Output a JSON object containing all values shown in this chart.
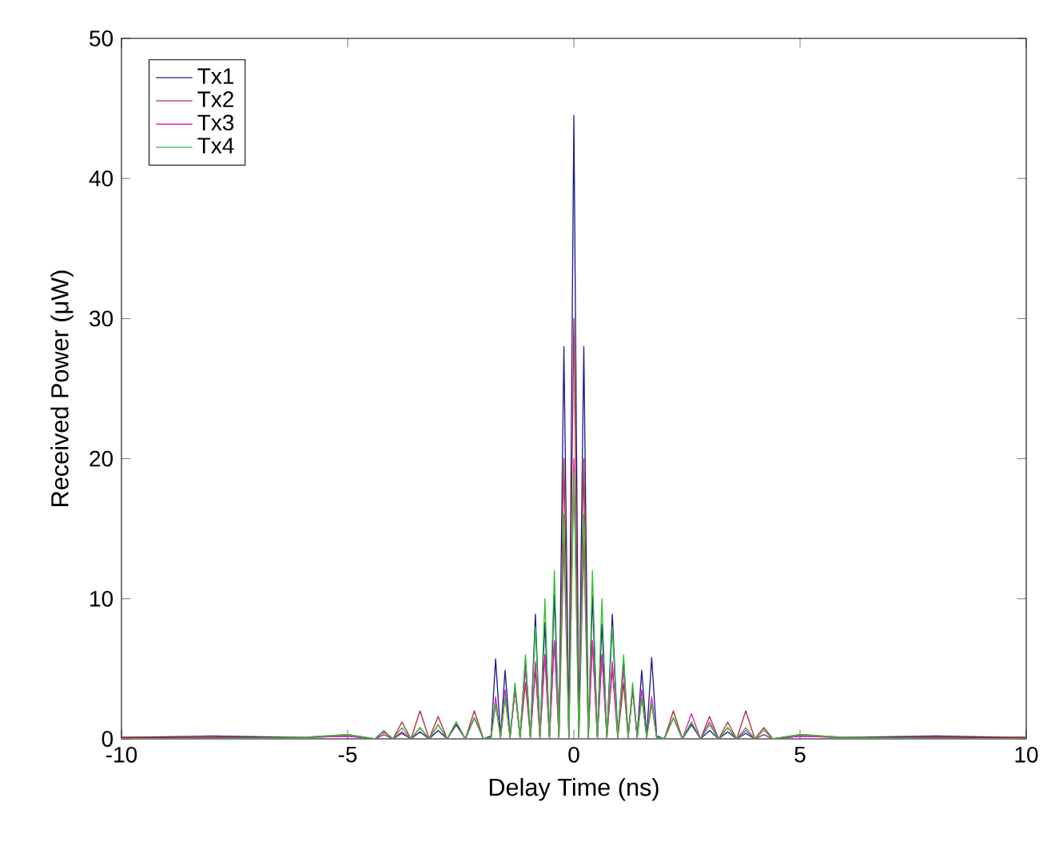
{
  "chart_data": {
    "type": "line",
    "xlabel": "Delay Time (ns)",
    "ylabel": "Received Power (μW)",
    "xlim": [
      -10,
      10
    ],
    "ylim": [
      0,
      50
    ],
    "xticks": [
      -10,
      -5,
      0,
      5,
      10
    ],
    "yticks": [
      0,
      10,
      20,
      30,
      40,
      50
    ],
    "grid": false,
    "legend": "top left",
    "marker": "none",
    "line_style": "solid",
    "x": [
      -10,
      -8,
      -6,
      -5,
      -4.4,
      -4.2,
      -4.0,
      -3.8,
      -3.6,
      -3.4,
      -3.2,
      -3.0,
      -2.8,
      -2.6,
      -2.4,
      -2.2,
      -2.0,
      -1.83,
      -1.73,
      -1.62,
      -1.52,
      -1.41,
      -1.3,
      -1.19,
      -1.07,
      -0.96,
      -0.85,
      -0.75,
      -0.64,
      -0.54,
      -0.43,
      -0.33,
      -0.22,
      -0.11,
      0,
      0.11,
      0.22,
      0.32,
      0.41,
      0.52,
      0.62,
      0.73,
      0.85,
      0.97,
      1.1,
      1.2,
      1.3,
      1.4,
      1.5,
      1.61,
      1.72,
      1.83,
      2.0,
      2.2,
      2.4,
      2.6,
      2.8,
      3.0,
      3.2,
      3.4,
      3.6,
      3.8,
      4.0,
      4.2,
      4.4,
      5,
      6,
      8,
      10
    ],
    "series": [
      {
        "name": "Tx1",
        "color": "#1c1c8c",
        "values": [
          0.1,
          0.2,
          0.1,
          0.2,
          0,
          0.3,
          0,
          0.4,
          0,
          0.5,
          0,
          0.6,
          0,
          1.0,
          0,
          1.5,
          0,
          0.2,
          5.7,
          0.2,
          4.9,
          0.2,
          3.5,
          0.2,
          5.6,
          0.2,
          8.9,
          0.2,
          8.3,
          0.2,
          10.3,
          0.2,
          28,
          0.2,
          44.5,
          0.2,
          28,
          0.2,
          10.2,
          0.2,
          8.2,
          0.2,
          8.9,
          0.2,
          5.6,
          0.2,
          3.5,
          0.2,
          4.9,
          0.2,
          5.8,
          0.2,
          0,
          1.5,
          0,
          1.0,
          0,
          0.6,
          0,
          0.5,
          0,
          0.4,
          0,
          0.3,
          0,
          0.2,
          0.1,
          0.2,
          0.1
        ]
      },
      {
        "name": "Tx2",
        "color": "#b02c3c",
        "values": [
          0.1,
          0.1,
          0.1,
          0.3,
          0,
          0.5,
          0,
          1.2,
          0,
          2.0,
          0,
          1.6,
          0,
          1.2,
          0,
          2.0,
          0,
          0.1,
          2.5,
          0.1,
          3.0,
          0.1,
          3.5,
          0.1,
          4.0,
          0.1,
          5.0,
          0.1,
          6.0,
          0.1,
          7.0,
          0.1,
          20,
          0.1,
          30,
          0.1,
          20,
          0.1,
          7.0,
          0.1,
          6.0,
          0.1,
          5.0,
          0.1,
          4.0,
          0.1,
          3.5,
          0.1,
          3.0,
          0.1,
          2.5,
          0.1,
          0,
          2.0,
          0,
          1.2,
          0,
          1.6,
          0,
          1.2,
          0,
          2.0,
          0,
          0.8,
          0,
          0.3,
          0.1,
          0.1,
          0.1
        ]
      },
      {
        "name": "Tx3",
        "color": "#e020c0",
        "values": [
          0,
          0,
          0.1,
          0.2,
          0,
          0.3,
          0,
          0.5,
          0,
          0.8,
          0,
          1.0,
          0,
          1.2,
          0,
          1.5,
          0,
          0.1,
          3.0,
          0.1,
          3.5,
          0.1,
          3.7,
          0.1,
          5.0,
          0.1,
          5.5,
          0.1,
          6.0,
          0.1,
          7.0,
          0.1,
          14,
          0.1,
          20,
          0.1,
          14,
          0.1,
          7.0,
          0.1,
          6.0,
          0.1,
          5.5,
          0.1,
          5.0,
          0.1,
          3.7,
          0.1,
          3.5,
          0.1,
          3.0,
          0.1,
          0,
          1.5,
          0,
          1.8,
          0,
          1.2,
          0,
          0.8,
          0,
          0.6,
          0,
          0.3,
          0,
          0.2,
          0.1,
          0,
          0
        ]
      },
      {
        "name": "Tx4",
        "color": "#30c030",
        "values": [
          0,
          0,
          0.1,
          0.3,
          0,
          0.6,
          0,
          0.8,
          0,
          0.8,
          0,
          1.0,
          0,
          1.2,
          0,
          1.5,
          0,
          0.1,
          2.5,
          0.1,
          3.0,
          0.1,
          4.0,
          0.1,
          6.0,
          0.1,
          8.0,
          0.1,
          10,
          0.1,
          12,
          0.1,
          16,
          0.1,
          19,
          0.1,
          16,
          0.1,
          12,
          0.1,
          10,
          0.1,
          8.0,
          0.1,
          6.0,
          0.1,
          4.0,
          0.1,
          3.0,
          0.1,
          2.5,
          0.1,
          0,
          1.5,
          0,
          1.2,
          0,
          1.0,
          0,
          0.8,
          0,
          0.8,
          0,
          0.6,
          0,
          0.3,
          0.1,
          0,
          0
        ]
      }
    ]
  }
}
